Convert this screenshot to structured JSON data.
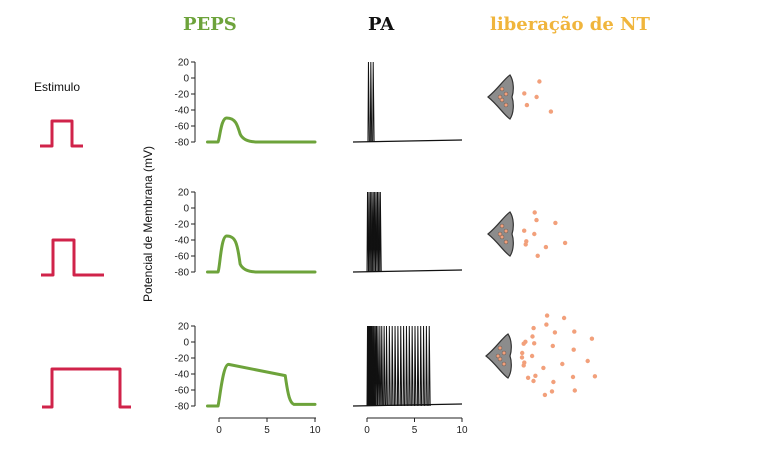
{
  "titles": {
    "peps": "PEPS",
    "pa": "PA",
    "nt": "liberação de NT"
  },
  "stimulus_label": "Estimulo",
  "ylabel": "Potencial de Membrana (mV)",
  "colors": {
    "peps": "#6da33b",
    "pa": "#111111",
    "nt": "#f0b53c",
    "stimulus": "#d0234a",
    "vesicle": "#f2a07b",
    "terminal_fill": "#8c8c8c"
  },
  "y_ticks": [
    "20",
    "0",
    "-20",
    "-40",
    "-60",
    "-80"
  ],
  "x_ticks": [
    "0",
    "5",
    "10"
  ],
  "rows": [
    {
      "stimulus_level": "short",
      "peps_peak_mV": -50,
      "peps_end_ms": 3,
      "pa_spike_times_ms": [
        0.1,
        0.35,
        0.6
      ],
      "nt_vesicle_count": 5
    },
    {
      "stimulus_level": "medium",
      "peps_peak_mV": -35,
      "peps_end_ms": 3,
      "pa_spike_times_ms": [
        0.0,
        0.15,
        0.3,
        0.45,
        0.6,
        0.75,
        0.9,
        1.05,
        1.2,
        1.35
      ],
      "nt_vesicle_count": 10
    },
    {
      "stimulus_level": "long",
      "peps_peak_mV": -28,
      "peps_end_ms": 7,
      "pa_spike_times_ms": [
        0.0,
        0.07,
        0.14,
        0.21,
        0.28,
        0.35,
        0.42,
        0.5,
        0.6,
        0.7,
        0.82,
        0.95,
        1.1,
        1.3,
        1.5,
        1.75,
        2.0,
        2.3,
        2.6,
        2.9,
        3.2,
        3.5,
        3.8,
        4.1,
        4.4,
        4.7,
        5.0,
        5.3,
        5.6,
        5.9,
        6.2,
        6.5
      ],
      "nt_vesicle_count": 30
    }
  ]
}
